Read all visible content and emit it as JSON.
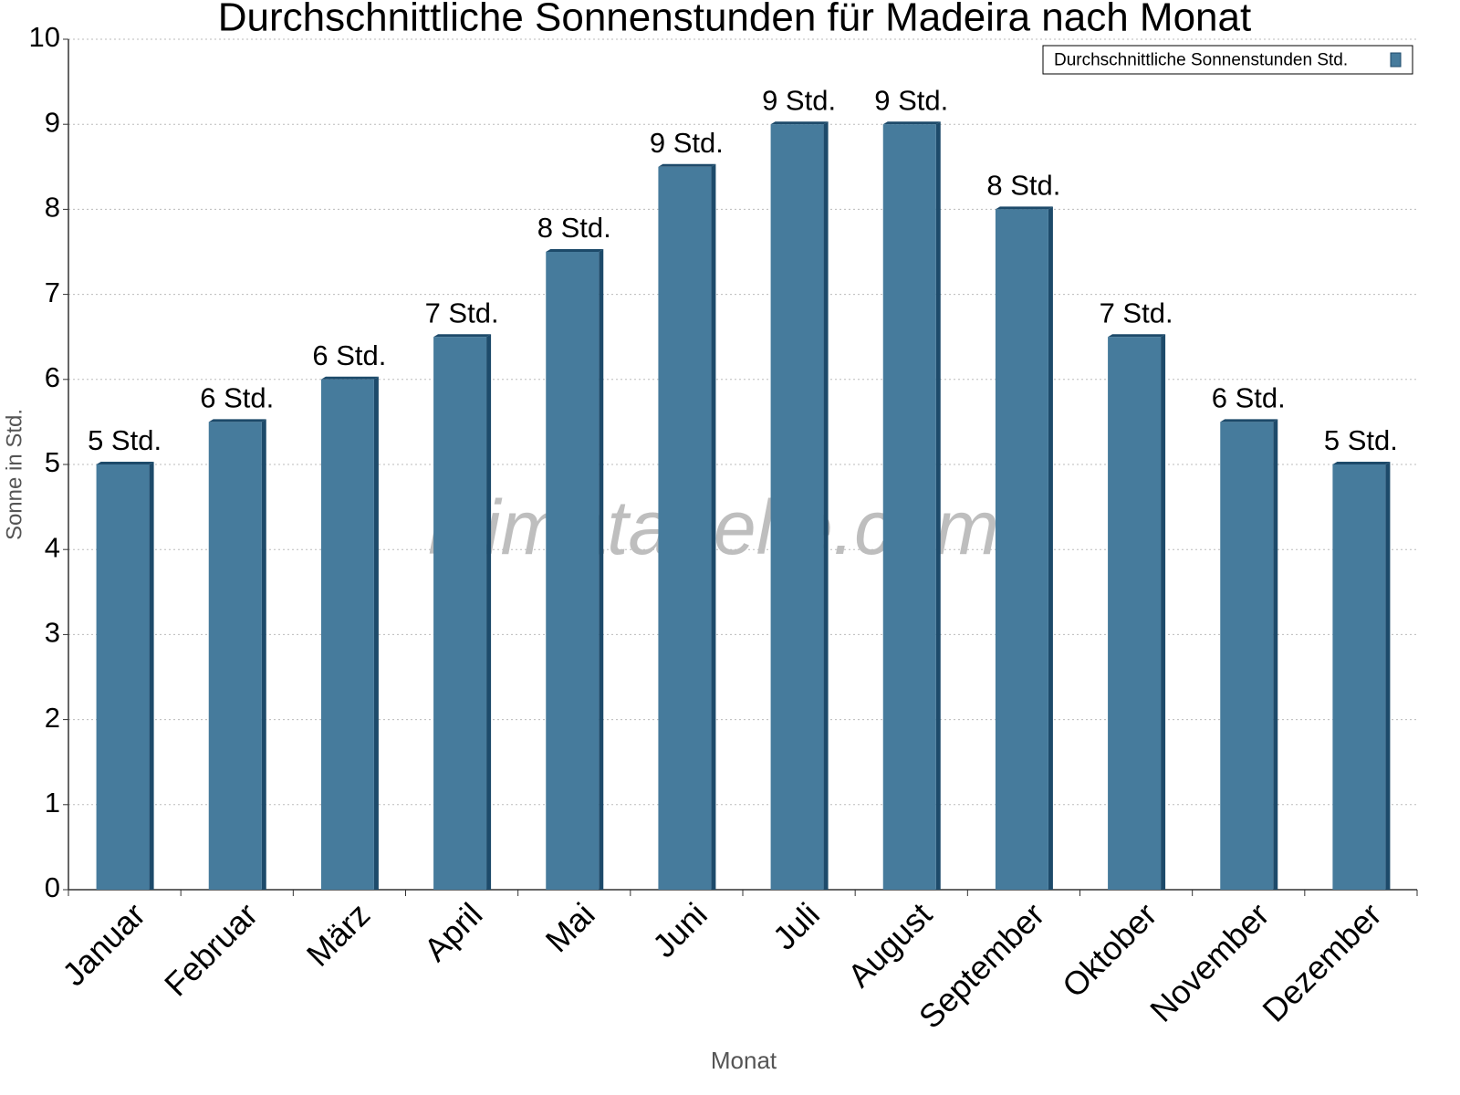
{
  "chart_data": {
    "type": "bar",
    "title": "Durchschnittliche Sonnenstunden für Madeira nach Monat",
    "x_label": "Monat",
    "y_label": "Sonne in Std.",
    "watermark": "klimatabelle.com",
    "categories": [
      "Januar",
      "Februar",
      "März",
      "April",
      "Mai",
      "Juni",
      "Juli",
      "August",
      "September",
      "Oktober",
      "November",
      "Dezember"
    ],
    "series": [
      {
        "name": "Durchschnittliche Sonnenstunden Std.",
        "color": "#467b9c",
        "values": [
          5,
          5.5,
          6,
          6.5,
          7.5,
          8.5,
          9,
          9,
          8,
          6.5,
          5.5,
          5
        ],
        "value_labels": [
          "5 Std.",
          "6 Std.",
          "6 Std.",
          "7 Std.",
          "8 Std.",
          "9 Std.",
          "9 Std.",
          "9 Std.",
          "8 Std.",
          "7 Std.",
          "6 Std.",
          "5 Std."
        ]
      }
    ],
    "ylim": [
      0,
      10
    ],
    "yticks": [
      0,
      1,
      2,
      3,
      4,
      5,
      6,
      7,
      8,
      9,
      10
    ],
    "grid": true,
    "legend": "top-right"
  }
}
